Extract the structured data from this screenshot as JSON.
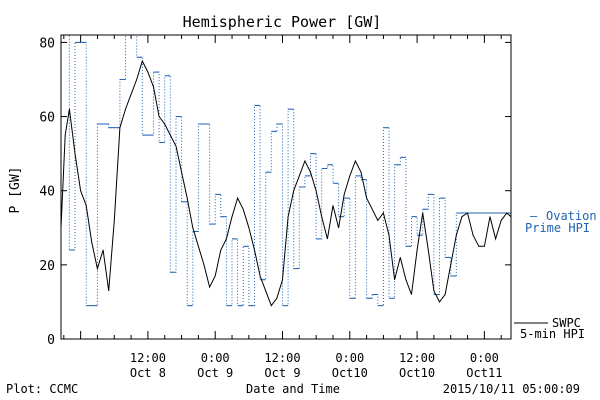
{
  "chart_data": {
    "type": "line",
    "title": "Hemispheric Power [GW]",
    "ylabel": "P [GW]",
    "xlabel": "Date and Time",
    "ylim": [
      0,
      82
    ],
    "xlim": [
      "2015-10-07T20:30",
      "2015-10-11T04:45"
    ],
    "y_ticks": [
      0,
      20,
      40,
      60,
      80
    ],
    "x_ticks": [
      {
        "t": "2015-10-08T12:00",
        "line1": "12:00",
        "line2": "Oct 8"
      },
      {
        "t": "2015-10-09T00:00",
        "line1": "0:00",
        "line2": "Oct 9"
      },
      {
        "t": "2015-10-09T12:00",
        "line1": "12:00",
        "line2": "Oct 9"
      },
      {
        "t": "2015-10-10T00:00",
        "line1": "0:00",
        "line2": "Oct10"
      },
      {
        "t": "2015-10-10T12:00",
        "line1": "12:00",
        "line2": "Oct10"
      },
      {
        "t": "2015-10-11T00:00",
        "line1": "0:00",
        "line2": "Oct11"
      }
    ],
    "series": [
      {
        "name": "SWPC 5-min HPI",
        "color": "#000000",
        "style": "solid",
        "points": [
          [
            "2015-10-07T20:30",
            30
          ],
          [
            "2015-10-07T21:15",
            55
          ],
          [
            "2015-10-07T22:00",
            62
          ],
          [
            "2015-10-07T23:00",
            50
          ],
          [
            "2015-10-08T00:00",
            40
          ],
          [
            "2015-10-08T01:00",
            36
          ],
          [
            "2015-10-08T02:00",
            26
          ],
          [
            "2015-10-08T03:00",
            19
          ],
          [
            "2015-10-08T04:00",
            24
          ],
          [
            "2015-10-08T05:00",
            13
          ],
          [
            "2015-10-08T06:00",
            32
          ],
          [
            "2015-10-08T07:00",
            57
          ],
          [
            "2015-10-08T08:00",
            62
          ],
          [
            "2015-10-08T09:00",
            66
          ],
          [
            "2015-10-08T10:00",
            70
          ],
          [
            "2015-10-08T11:00",
            75
          ],
          [
            "2015-10-08T12:00",
            72
          ],
          [
            "2015-10-08T13:00",
            68
          ],
          [
            "2015-10-08T14:00",
            60
          ],
          [
            "2015-10-08T15:00",
            58
          ],
          [
            "2015-10-08T16:00",
            55
          ],
          [
            "2015-10-08T17:00",
            52
          ],
          [
            "2015-10-08T18:00",
            45
          ],
          [
            "2015-10-08T19:00",
            38
          ],
          [
            "2015-10-08T20:00",
            30
          ],
          [
            "2015-10-08T21:00",
            25
          ],
          [
            "2015-10-08T22:00",
            20
          ],
          [
            "2015-10-08T23:00",
            14
          ],
          [
            "2015-10-09T00:00",
            17
          ],
          [
            "2015-10-09T01:00",
            24
          ],
          [
            "2015-10-09T02:00",
            27
          ],
          [
            "2015-10-09T03:00",
            33
          ],
          [
            "2015-10-09T04:00",
            38
          ],
          [
            "2015-10-09T05:00",
            35
          ],
          [
            "2015-10-09T06:00",
            30
          ],
          [
            "2015-10-09T07:00",
            24
          ],
          [
            "2015-10-09T08:00",
            17
          ],
          [
            "2015-10-09T09:00",
            13
          ],
          [
            "2015-10-09T10:00",
            9
          ],
          [
            "2015-10-09T11:00",
            11
          ],
          [
            "2015-10-09T12:00",
            16
          ],
          [
            "2015-10-09T13:00",
            33
          ],
          [
            "2015-10-09T14:00",
            40
          ],
          [
            "2015-10-09T15:00",
            44
          ],
          [
            "2015-10-09T16:00",
            48
          ],
          [
            "2015-10-09T17:00",
            45
          ],
          [
            "2015-10-09T18:00",
            40
          ],
          [
            "2015-10-09T19:00",
            33
          ],
          [
            "2015-10-09T20:00",
            27
          ],
          [
            "2015-10-09T21:00",
            36
          ],
          [
            "2015-10-09T22:00",
            30
          ],
          [
            "2015-10-09T23:00",
            39
          ],
          [
            "2015-10-10T00:00",
            44
          ],
          [
            "2015-10-10T01:00",
            48
          ],
          [
            "2015-10-10T02:00",
            45
          ],
          [
            "2015-10-10T03:00",
            38
          ],
          [
            "2015-10-10T04:00",
            35
          ],
          [
            "2015-10-10T05:00",
            32
          ],
          [
            "2015-10-10T06:00",
            34
          ],
          [
            "2015-10-10T07:00",
            28
          ],
          [
            "2015-10-10T08:00",
            16
          ],
          [
            "2015-10-10T09:00",
            22
          ],
          [
            "2015-10-10T10:00",
            16
          ],
          [
            "2015-10-10T11:00",
            12
          ],
          [
            "2015-10-10T12:00",
            24
          ],
          [
            "2015-10-10T13:00",
            34
          ],
          [
            "2015-10-10T14:00",
            24
          ],
          [
            "2015-10-10T15:00",
            13
          ],
          [
            "2015-10-10T16:00",
            10
          ],
          [
            "2015-10-10T17:00",
            12
          ],
          [
            "2015-10-10T18:00",
            20
          ],
          [
            "2015-10-10T19:00",
            28
          ],
          [
            "2015-10-10T20:00",
            33
          ],
          [
            "2015-10-10T21:00",
            34
          ],
          [
            "2015-10-10T22:00",
            28
          ],
          [
            "2015-10-10T23:00",
            25
          ],
          [
            "2015-10-11T00:00",
            25
          ],
          [
            "2015-10-11T01:00",
            33
          ],
          [
            "2015-10-11T02:00",
            27
          ],
          [
            "2015-10-11T03:00",
            32
          ],
          [
            "2015-10-11T04:00",
            34
          ],
          [
            "2015-10-11T04:45",
            33
          ]
        ]
      },
      {
        "name": "Ovation Prime HPI",
        "color": "#1e63b4",
        "style": "dotted-step",
        "points": [
          [
            "2015-10-07T20:30",
            82
          ],
          [
            "2015-10-07T22:00",
            24
          ],
          [
            "2015-10-07T23:00",
            80
          ],
          [
            "2015-10-08T01:00",
            9
          ],
          [
            "2015-10-08T03:00",
            58
          ],
          [
            "2015-10-08T05:00",
            57
          ],
          [
            "2015-10-08T07:00",
            70
          ],
          [
            "2015-10-08T08:00",
            82
          ],
          [
            "2015-10-08T10:00",
            76
          ],
          [
            "2015-10-08T11:00",
            55
          ],
          [
            "2015-10-08T13:00",
            72
          ],
          [
            "2015-10-08T14:00",
            53
          ],
          [
            "2015-10-08T15:00",
            71
          ],
          [
            "2015-10-08T16:00",
            18
          ],
          [
            "2015-10-08T17:00",
            60
          ],
          [
            "2015-10-08T18:00",
            37
          ],
          [
            "2015-10-08T19:00",
            9
          ],
          [
            "2015-10-08T20:00",
            29
          ],
          [
            "2015-10-08T21:00",
            58
          ],
          [
            "2015-10-08T23:00",
            31
          ],
          [
            "2015-10-09T00:00",
            39
          ],
          [
            "2015-10-09T01:00",
            33
          ],
          [
            "2015-10-09T02:00",
            9
          ],
          [
            "2015-10-09T03:00",
            27
          ],
          [
            "2015-10-09T04:00",
            9
          ],
          [
            "2015-10-09T05:00",
            25
          ],
          [
            "2015-10-09T06:00",
            9
          ],
          [
            "2015-10-09T07:00",
            63
          ],
          [
            "2015-10-09T08:00",
            16
          ],
          [
            "2015-10-09T09:00",
            45
          ],
          [
            "2015-10-09T10:00",
            56
          ],
          [
            "2015-10-09T11:00",
            58
          ],
          [
            "2015-10-09T12:00",
            9
          ],
          [
            "2015-10-09T13:00",
            62
          ],
          [
            "2015-10-09T14:00",
            19
          ],
          [
            "2015-10-09T15:00",
            41
          ],
          [
            "2015-10-09T16:00",
            44
          ],
          [
            "2015-10-09T17:00",
            50
          ],
          [
            "2015-10-09T18:00",
            27
          ],
          [
            "2015-10-09T19:00",
            46
          ],
          [
            "2015-10-09T20:00",
            47
          ],
          [
            "2015-10-09T21:00",
            42
          ],
          [
            "2015-10-09T22:00",
            33
          ],
          [
            "2015-10-09T23:00",
            38
          ],
          [
            "2015-10-10T00:00",
            11
          ],
          [
            "2015-10-10T01:00",
            44
          ],
          [
            "2015-10-10T02:00",
            43
          ],
          [
            "2015-10-10T03:00",
            11
          ],
          [
            "2015-10-10T04:00",
            12
          ],
          [
            "2015-10-10T05:00",
            9
          ],
          [
            "2015-10-10T06:00",
            57
          ],
          [
            "2015-10-10T07:00",
            11
          ],
          [
            "2015-10-10T08:00",
            47
          ],
          [
            "2015-10-10T09:00",
            49
          ],
          [
            "2015-10-10T10:00",
            25
          ],
          [
            "2015-10-10T11:00",
            33
          ],
          [
            "2015-10-10T12:00",
            28
          ],
          [
            "2015-10-10T13:00",
            35
          ],
          [
            "2015-10-10T14:00",
            39
          ],
          [
            "2015-10-10T15:00",
            12
          ],
          [
            "2015-10-10T16:00",
            38
          ],
          [
            "2015-10-10T17:00",
            22
          ],
          [
            "2015-10-10T18:00",
            17
          ],
          [
            "2015-10-10T19:00",
            34
          ],
          [
            "2015-10-11T04:45",
            34
          ]
        ]
      }
    ],
    "legend": [
      {
        "name": "Ovation Prime HPI",
        "line1": "Ovation",
        "line2": "Prime HPI",
        "marker": "—",
        "placement": "right"
      },
      {
        "name": "SWPC 5-min HPI",
        "line1": "SWPC",
        "line2": "5-min HPI",
        "placement": "bottom-right"
      }
    ]
  },
  "footer": {
    "left": "Plot: CCMC",
    "right": "2015/10/11 05:00:09"
  }
}
